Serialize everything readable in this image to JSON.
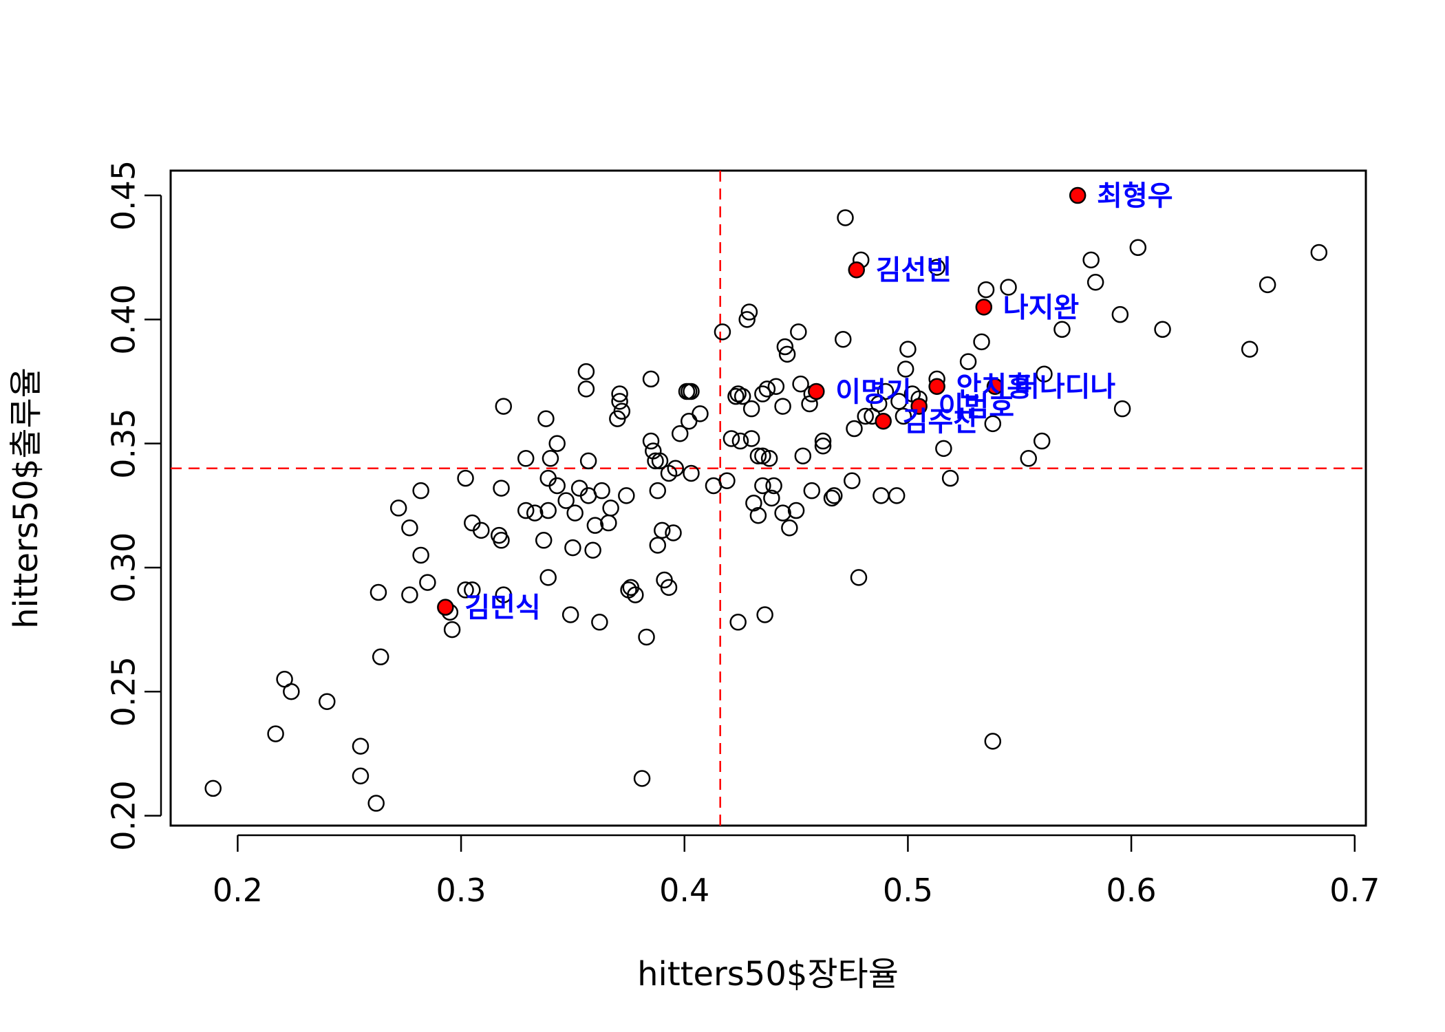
{
  "chart_data": {
    "type": "scatter",
    "title": "",
    "xlabel": "hitters50$장타율",
    "ylabel": "hitters50$출루율",
    "xlim": [
      0.17,
      0.705
    ],
    "ylim": [
      0.196,
      0.46
    ],
    "x_ticks": [
      "0.2",
      "0.3",
      "0.4",
      "0.5",
      "0.6",
      "0.7"
    ],
    "y_ticks": [
      "0.20",
      "0.25",
      "0.30",
      "0.35",
      "0.40",
      "0.45"
    ],
    "mean_lines": {
      "x": 0.416,
      "y": 0.34
    },
    "colors": {
      "highlight_point": "#ff0000",
      "label_text": "#0000ff",
      "mean_line": "#ff0000",
      "points": "#000000"
    },
    "grid": false,
    "points": [
      [
        0.189,
        0.211
      ],
      [
        0.217,
        0.233
      ],
      [
        0.221,
        0.255
      ],
      [
        0.224,
        0.25
      ],
      [
        0.24,
        0.246
      ],
      [
        0.255,
        0.228
      ],
      [
        0.255,
        0.216
      ],
      [
        0.262,
        0.205
      ],
      [
        0.263,
        0.29
      ],
      [
        0.264,
        0.264
      ],
      [
        0.272,
        0.324
      ],
      [
        0.277,
        0.316
      ],
      [
        0.277,
        0.289
      ],
      [
        0.282,
        0.331
      ],
      [
        0.282,
        0.305
      ],
      [
        0.285,
        0.294
      ],
      [
        0.295,
        0.282
      ],
      [
        0.296,
        0.275
      ],
      [
        0.302,
        0.291
      ],
      [
        0.302,
        0.336
      ],
      [
        0.305,
        0.291
      ],
      [
        0.305,
        0.318
      ],
      [
        0.309,
        0.315
      ],
      [
        0.317,
        0.313
      ],
      [
        0.318,
        0.311
      ],
      [
        0.318,
        0.332
      ],
      [
        0.319,
        0.365
      ],
      [
        0.319,
        0.289
      ],
      [
        0.329,
        0.323
      ],
      [
        0.329,
        0.344
      ],
      [
        0.333,
        0.322
      ],
      [
        0.337,
        0.311
      ],
      [
        0.338,
        0.36
      ],
      [
        0.339,
        0.323
      ],
      [
        0.339,
        0.336
      ],
      [
        0.339,
        0.296
      ],
      [
        0.34,
        0.344
      ],
      [
        0.343,
        0.35
      ],
      [
        0.343,
        0.333
      ],
      [
        0.347,
        0.327
      ],
      [
        0.349,
        0.281
      ],
      [
        0.35,
        0.308
      ],
      [
        0.351,
        0.322
      ],
      [
        0.353,
        0.332
      ],
      [
        0.356,
        0.379
      ],
      [
        0.356,
        0.372
      ],
      [
        0.357,
        0.343
      ],
      [
        0.357,
        0.329
      ],
      [
        0.359,
        0.307
      ],
      [
        0.36,
        0.317
      ],
      [
        0.362,
        0.278
      ],
      [
        0.363,
        0.331
      ],
      [
        0.366,
        0.318
      ],
      [
        0.367,
        0.324
      ],
      [
        0.37,
        0.36
      ],
      [
        0.371,
        0.37
      ],
      [
        0.371,
        0.367
      ],
      [
        0.372,
        0.363
      ],
      [
        0.374,
        0.329
      ],
      [
        0.375,
        0.291
      ],
      [
        0.376,
        0.292
      ],
      [
        0.378,
        0.289
      ],
      [
        0.381,
        0.215
      ],
      [
        0.383,
        0.272
      ],
      [
        0.385,
        0.376
      ],
      [
        0.385,
        0.351
      ],
      [
        0.386,
        0.347
      ],
      [
        0.387,
        0.343
      ],
      [
        0.388,
        0.331
      ],
      [
        0.388,
        0.309
      ],
      [
        0.389,
        0.343
      ],
      [
        0.39,
        0.315
      ],
      [
        0.391,
        0.295
      ],
      [
        0.393,
        0.292
      ],
      [
        0.393,
        0.338
      ],
      [
        0.395,
        0.314
      ],
      [
        0.396,
        0.34
      ],
      [
        0.398,
        0.354
      ],
      [
        0.401,
        0.371
      ],
      [
        0.402,
        0.359
      ],
      [
        0.402,
        0.371
      ],
      [
        0.403,
        0.338
      ],
      [
        0.403,
        0.371
      ],
      [
        0.407,
        0.362
      ],
      [
        0.413,
        0.333
      ],
      [
        0.417,
        0.395
      ],
      [
        0.419,
        0.335
      ],
      [
        0.421,
        0.352
      ],
      [
        0.423,
        0.369
      ],
      [
        0.424,
        0.37
      ],
      [
        0.424,
        0.278
      ],
      [
        0.425,
        0.351
      ],
      [
        0.426,
        0.369
      ],
      [
        0.428,
        0.4
      ],
      [
        0.429,
        0.403
      ],
      [
        0.43,
        0.364
      ],
      [
        0.43,
        0.352
      ],
      [
        0.431,
        0.326
      ],
      [
        0.433,
        0.345
      ],
      [
        0.433,
        0.321
      ],
      [
        0.435,
        0.333
      ],
      [
        0.435,
        0.37
      ],
      [
        0.435,
        0.345
      ],
      [
        0.436,
        0.281
      ],
      [
        0.437,
        0.372
      ],
      [
        0.438,
        0.344
      ],
      [
        0.439,
        0.328
      ],
      [
        0.44,
        0.333
      ],
      [
        0.441,
        0.373
      ],
      [
        0.444,
        0.365
      ],
      [
        0.444,
        0.322
      ],
      [
        0.445,
        0.389
      ],
      [
        0.446,
        0.386
      ],
      [
        0.447,
        0.316
      ],
      [
        0.45,
        0.323
      ],
      [
        0.451,
        0.395
      ],
      [
        0.452,
        0.374
      ],
      [
        0.453,
        0.345
      ],
      [
        0.456,
        0.366
      ],
      [
        0.457,
        0.331
      ],
      [
        0.457,
        0.37
      ],
      [
        0.462,
        0.351
      ],
      [
        0.462,
        0.349
      ],
      [
        0.466,
        0.328
      ],
      [
        0.467,
        0.329
      ],
      [
        0.471,
        0.392
      ],
      [
        0.472,
        0.441
      ],
      [
        0.475,
        0.335
      ],
      [
        0.476,
        0.356
      ],
      [
        0.478,
        0.296
      ],
      [
        0.479,
        0.424
      ],
      [
        0.481,
        0.361
      ],
      [
        0.484,
        0.361
      ],
      [
        0.487,
        0.366
      ],
      [
        0.488,
        0.329
      ],
      [
        0.49,
        0.371
      ],
      [
        0.495,
        0.329
      ],
      [
        0.496,
        0.367
      ],
      [
        0.498,
        0.361
      ],
      [
        0.499,
        0.38
      ],
      [
        0.5,
        0.388
      ],
      [
        0.502,
        0.37
      ],
      [
        0.505,
        0.368
      ],
      [
        0.513,
        0.376
      ],
      [
        0.513,
        0.421
      ],
      [
        0.516,
        0.348
      ],
      [
        0.519,
        0.336
      ],
      [
        0.527,
        0.383
      ],
      [
        0.533,
        0.391
      ],
      [
        0.535,
        0.412
      ],
      [
        0.538,
        0.358
      ],
      [
        0.538,
        0.23
      ],
      [
        0.545,
        0.413
      ],
      [
        0.554,
        0.344
      ],
      [
        0.56,
        0.351
      ],
      [
        0.561,
        0.378
      ],
      [
        0.569,
        0.396
      ],
      [
        0.582,
        0.424
      ],
      [
        0.584,
        0.415
      ],
      [
        0.595,
        0.402
      ],
      [
        0.596,
        0.364
      ],
      [
        0.603,
        0.429
      ],
      [
        0.614,
        0.396
      ],
      [
        0.653,
        0.388
      ],
      [
        0.661,
        0.414
      ],
      [
        0.684,
        0.427
      ]
    ],
    "highlighted": [
      {
        "name": "최형우",
        "x": 0.576,
        "y": 0.45
      },
      {
        "name": "김선빈",
        "x": 0.477,
        "y": 0.42
      },
      {
        "name": "나지완",
        "x": 0.534,
        "y": 0.405
      },
      {
        "name": "이명기",
        "x": 0.459,
        "y": 0.371
      },
      {
        "name": "안치홍",
        "x": 0.513,
        "y": 0.373
      },
      {
        "name": "버나디나",
        "x": 0.539,
        "y": 0.373
      },
      {
        "name": "이범호",
        "x": 0.505,
        "y": 0.365
      },
      {
        "name": "김주찬",
        "x": 0.489,
        "y": 0.359
      },
      {
        "name": "김민식",
        "x": 0.293,
        "y": 0.284
      }
    ]
  }
}
